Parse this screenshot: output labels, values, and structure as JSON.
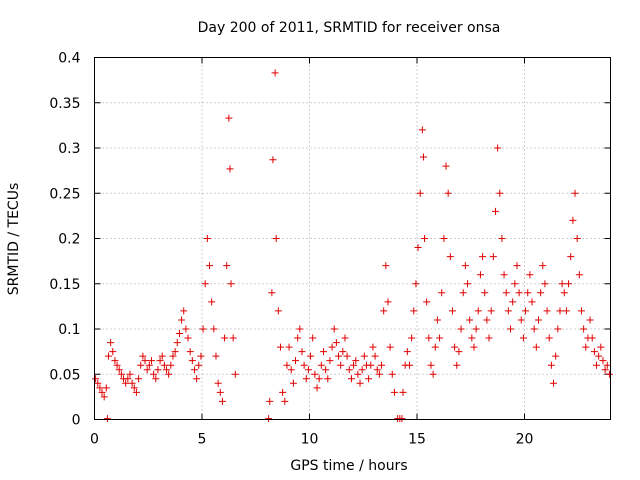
{
  "chart_data": {
    "type": "scatter",
    "title": "Day 200 of 2011, SRMTID for receiver onsa",
    "xlabel": "GPS time / hours",
    "ylabel": "SRMTID / TECUs",
    "xlim": [
      0,
      24
    ],
    "ylim": [
      0,
      0.4
    ],
    "xticks": [
      0,
      5,
      10,
      15,
      20
    ],
    "xtick_labels": [
      "0",
      "5",
      "10",
      "15",
      "20"
    ],
    "yticks": [
      0,
      0.05,
      0.1,
      0.15,
      0.2,
      0.25,
      0.3,
      0.35,
      0.4
    ],
    "ytick_labels": [
      "0",
      "0.05",
      "0.1",
      "0.15",
      "0.2",
      "0.25",
      "0.3",
      "0.35",
      "0.4"
    ],
    "grid": true,
    "marker": "+",
    "color": "#e00000",
    "series": [
      {
        "name": "onsa",
        "points": [
          [
            0.05,
            0.045
          ],
          [
            0.15,
            0.04
          ],
          [
            0.25,
            0.035
          ],
          [
            0.35,
            0.03
          ],
          [
            0.45,
            0.025
          ],
          [
            0.55,
            0.035
          ],
          [
            0.6,
            0.001
          ],
          [
            0.65,
            0.07
          ],
          [
            0.75,
            0.085
          ],
          [
            0.85,
            0.075
          ],
          [
            0.95,
            0.065
          ],
          [
            1.05,
            0.06
          ],
          [
            1.15,
            0.055
          ],
          [
            1.25,
            0.05
          ],
          [
            1.35,
            0.045
          ],
          [
            1.45,
            0.04
          ],
          [
            1.55,
            0.045
          ],
          [
            1.65,
            0.05
          ],
          [
            1.75,
            0.04
          ],
          [
            1.85,
            0.035
          ],
          [
            1.95,
            0.03
          ],
          [
            2.05,
            0.045
          ],
          [
            2.15,
            0.06
          ],
          [
            2.25,
            0.07
          ],
          [
            2.35,
            0.065
          ],
          [
            2.45,
            0.055
          ],
          [
            2.55,
            0.06
          ],
          [
            2.65,
            0.065
          ],
          [
            2.75,
            0.05
          ],
          [
            2.85,
            0.045
          ],
          [
            2.95,
            0.055
          ],
          [
            3.05,
            0.065
          ],
          [
            3.15,
            0.07
          ],
          [
            3.25,
            0.06
          ],
          [
            3.35,
            0.055
          ],
          [
            3.45,
            0.05
          ],
          [
            3.55,
            0.06
          ],
          [
            3.65,
            0.07
          ],
          [
            3.75,
            0.075
          ],
          [
            3.85,
            0.085
          ],
          [
            3.95,
            0.095
          ],
          [
            4.05,
            0.11
          ],
          [
            4.15,
            0.12
          ],
          [
            4.25,
            0.1
          ],
          [
            4.35,
            0.09
          ],
          [
            4.45,
            0.075
          ],
          [
            4.55,
            0.065
          ],
          [
            4.65,
            0.055
          ],
          [
            4.75,
            0.045
          ],
          [
            4.85,
            0.06
          ],
          [
            4.95,
            0.07
          ],
          [
            5.05,
            0.1
          ],
          [
            5.15,
            0.15
          ],
          [
            5.25,
            0.2
          ],
          [
            5.35,
            0.17
          ],
          [
            5.45,
            0.13
          ],
          [
            5.55,
            0.1
          ],
          [
            5.65,
            0.07
          ],
          [
            5.75,
            0.04
          ],
          [
            5.85,
            0.03
          ],
          [
            5.95,
            0.02
          ],
          [
            6.05,
            0.09
          ],
          [
            6.15,
            0.17
          ],
          [
            6.25,
            0.333
          ],
          [
            6.3,
            0.277
          ],
          [
            6.35,
            0.15
          ],
          [
            6.45,
            0.09
          ],
          [
            6.55,
            0.05
          ],
          [
            8.1,
            0.001
          ],
          [
            8.15,
            0.02
          ],
          [
            8.25,
            0.14
          ],
          [
            8.3,
            0.287
          ],
          [
            8.4,
            0.383
          ],
          [
            8.45,
            0.2
          ],
          [
            8.55,
            0.12
          ],
          [
            8.65,
            0.08
          ],
          [
            8.75,
            0.03
          ],
          [
            8.85,
            0.02
          ],
          [
            8.95,
            0.06
          ],
          [
            9.05,
            0.08
          ],
          [
            9.15,
            0.055
          ],
          [
            9.25,
            0.04
          ],
          [
            9.35,
            0.065
          ],
          [
            9.45,
            0.09
          ],
          [
            9.55,
            0.1
          ],
          [
            9.65,
            0.075
          ],
          [
            9.75,
            0.06
          ],
          [
            9.85,
            0.045
          ],
          [
            9.95,
            0.055
          ],
          [
            10.05,
            0.07
          ],
          [
            10.15,
            0.09
          ],
          [
            10.25,
            0.05
          ],
          [
            10.35,
            0.035
          ],
          [
            10.45,
            0.045
          ],
          [
            10.55,
            0.06
          ],
          [
            10.65,
            0.075
          ],
          [
            10.75,
            0.055
          ],
          [
            10.85,
            0.045
          ],
          [
            10.95,
            0.065
          ],
          [
            11.05,
            0.08
          ],
          [
            11.15,
            0.1
          ],
          [
            11.25,
            0.085
          ],
          [
            11.35,
            0.07
          ],
          [
            11.45,
            0.06
          ],
          [
            11.55,
            0.075
          ],
          [
            11.65,
            0.09
          ],
          [
            11.75,
            0.07
          ],
          [
            11.85,
            0.055
          ],
          [
            11.95,
            0.045
          ],
          [
            12.05,
            0.06
          ],
          [
            12.15,
            0.065
          ],
          [
            12.25,
            0.05
          ],
          [
            12.35,
            0.04
          ],
          [
            12.45,
            0.055
          ],
          [
            12.55,
            0.07
          ],
          [
            12.65,
            0.06
          ],
          [
            12.75,
            0.045
          ],
          [
            12.85,
            0.06
          ],
          [
            12.95,
            0.08
          ],
          [
            13.05,
            0.07
          ],
          [
            13.15,
            0.055
          ],
          [
            13.25,
            0.05
          ],
          [
            13.35,
            0.06
          ],
          [
            13.45,
            0.12
          ],
          [
            13.55,
            0.17
          ],
          [
            13.65,
            0.13
          ],
          [
            13.75,
            0.08
          ],
          [
            13.85,
            0.05
          ],
          [
            13.95,
            0.03
          ],
          [
            14.1,
            0.001
          ],
          [
            14.2,
            0.001
          ],
          [
            14.3,
            0.001
          ],
          [
            14.35,
            0.03
          ],
          [
            14.45,
            0.06
          ],
          [
            14.55,
            0.075
          ],
          [
            14.65,
            0.06
          ],
          [
            14.75,
            0.09
          ],
          [
            14.85,
            0.12
          ],
          [
            14.95,
            0.15
          ],
          [
            15.05,
            0.19
          ],
          [
            15.15,
            0.25
          ],
          [
            15.25,
            0.32
          ],
          [
            15.3,
            0.29
          ],
          [
            15.35,
            0.2
          ],
          [
            15.45,
            0.13
          ],
          [
            15.55,
            0.09
          ],
          [
            15.65,
            0.06
          ],
          [
            15.75,
            0.05
          ],
          [
            15.85,
            0.08
          ],
          [
            15.95,
            0.11
          ],
          [
            16.05,
            0.09
          ],
          [
            16.15,
            0.14
          ],
          [
            16.25,
            0.2
          ],
          [
            16.35,
            0.28
          ],
          [
            16.45,
            0.25
          ],
          [
            16.55,
            0.18
          ],
          [
            16.65,
            0.12
          ],
          [
            16.75,
            0.08
          ],
          [
            16.85,
            0.06
          ],
          [
            16.95,
            0.075
          ],
          [
            17.05,
            0.1
          ],
          [
            17.15,
            0.14
          ],
          [
            17.25,
            0.17
          ],
          [
            17.35,
            0.15
          ],
          [
            17.45,
            0.11
          ],
          [
            17.55,
            0.09
          ],
          [
            17.65,
            0.08
          ],
          [
            17.75,
            0.1
          ],
          [
            17.85,
            0.12
          ],
          [
            17.95,
            0.16
          ],
          [
            18.05,
            0.18
          ],
          [
            18.15,
            0.14
          ],
          [
            18.25,
            0.11
          ],
          [
            18.35,
            0.09
          ],
          [
            18.45,
            0.12
          ],
          [
            18.55,
            0.18
          ],
          [
            18.65,
            0.23
          ],
          [
            18.75,
            0.3
          ],
          [
            18.85,
            0.25
          ],
          [
            18.95,
            0.2
          ],
          [
            19.05,
            0.16
          ],
          [
            19.15,
            0.14
          ],
          [
            19.25,
            0.12
          ],
          [
            19.35,
            0.1
          ],
          [
            19.45,
            0.13
          ],
          [
            19.55,
            0.15
          ],
          [
            19.65,
            0.17
          ],
          [
            19.75,
            0.14
          ],
          [
            19.85,
            0.11
          ],
          [
            19.95,
            0.09
          ],
          [
            20.05,
            0.12
          ],
          [
            20.15,
            0.14
          ],
          [
            20.25,
            0.16
          ],
          [
            20.35,
            0.13
          ],
          [
            20.45,
            0.1
          ],
          [
            20.55,
            0.08
          ],
          [
            20.65,
            0.11
          ],
          [
            20.75,
            0.14
          ],
          [
            20.85,
            0.17
          ],
          [
            20.95,
            0.15
          ],
          [
            21.05,
            0.12
          ],
          [
            21.15,
            0.09
          ],
          [
            21.25,
            0.06
          ],
          [
            21.35,
            0.04
          ],
          [
            21.45,
            0.07
          ],
          [
            21.55,
            0.1
          ],
          [
            21.65,
            0.12
          ],
          [
            21.75,
            0.15
          ],
          [
            21.85,
            0.14
          ],
          [
            21.95,
            0.12
          ],
          [
            22.05,
            0.15
          ],
          [
            22.15,
            0.18
          ],
          [
            22.25,
            0.22
          ],
          [
            22.35,
            0.25
          ],
          [
            22.45,
            0.2
          ],
          [
            22.55,
            0.16
          ],
          [
            22.65,
            0.12
          ],
          [
            22.75,
            0.1
          ],
          [
            22.85,
            0.08
          ],
          [
            22.95,
            0.09
          ],
          [
            23.05,
            0.11
          ],
          [
            23.15,
            0.09
          ],
          [
            23.25,
            0.075
          ],
          [
            23.35,
            0.06
          ],
          [
            23.45,
            0.07
          ],
          [
            23.55,
            0.08
          ],
          [
            23.65,
            0.065
          ],
          [
            23.75,
            0.055
          ],
          [
            23.85,
            0.06
          ],
          [
            23.95,
            0.05
          ]
        ]
      }
    ]
  }
}
